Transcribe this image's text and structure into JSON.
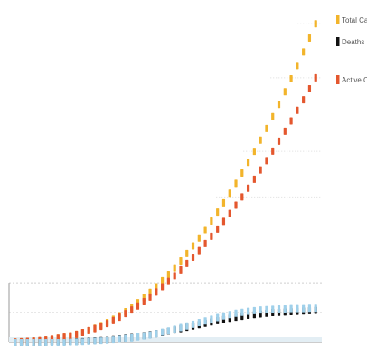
{
  "chart_data": {
    "type": "line",
    "title": "",
    "xlabel": "",
    "ylabel": "",
    "legend_position": "top-right",
    "grid": true,
    "x": [
      1,
      2,
      3,
      4,
      5,
      6,
      7,
      8,
      9,
      10,
      11,
      12,
      13,
      14,
      15,
      16,
      17,
      18,
      19,
      20,
      21,
      22,
      23,
      24,
      25,
      26,
      27,
      28,
      29,
      30,
      31,
      32,
      33,
      34,
      35,
      36,
      37,
      38,
      39,
      40,
      41,
      42,
      43,
      44,
      45,
      46,
      47,
      48,
      49,
      50
    ],
    "xlim": [
      0,
      51
    ],
    "ylim": [
      0,
      100
    ],
    "series": [
      {
        "name": "Total Cases",
        "color": "#f2b42b",
        "values": [
          0.2,
          0.3,
          0.4,
          0.5,
          0.6,
          0.8,
          1.0,
          1.3,
          1.6,
          2.0,
          2.5,
          3.0,
          3.6,
          4.3,
          5.1,
          6.0,
          7.0,
          8.1,
          9.3,
          10.6,
          12.0,
          13.5,
          15.1,
          16.8,
          18.6,
          20.5,
          22.5,
          24.6,
          26.8,
          29.1,
          31.5,
          34.0,
          36.6,
          39.3,
          42.1,
          45.0,
          48.0,
          51.1,
          54.3,
          57.6,
          61.0,
          64.5,
          68.1,
          71.8,
          75.6,
          79.5,
          83.5,
          87.6,
          91.8,
          96.1
        ]
      },
      {
        "name": "Deaths",
        "color": "#111111",
        "values": [
          0,
          0,
          0,
          0,
          0,
          0,
          0.1,
          0.1,
          0.1,
          0.2,
          0.2,
          0.3,
          0.4,
          0.5,
          0.6,
          0.7,
          0.9,
          1.1,
          1.3,
          1.5,
          1.8,
          2.1,
          2.4,
          2.7,
          3.0,
          3.4,
          3.8,
          4.2,
          4.6,
          5.0,
          5.4,
          5.8,
          6.2,
          6.6,
          7.0,
          7.3,
          7.6,
          7.9,
          8.2,
          8.4,
          8.6,
          8.8,
          9.0,
          9.1,
          9.2,
          9.3,
          9.4,
          9.5,
          9.6,
          9.7
        ]
      },
      {
        "name": "Active Cases",
        "color": "#e4572e",
        "values": [
          0.2,
          0.3,
          0.4,
          0.5,
          0.6,
          0.8,
          1.0,
          1.3,
          1.6,
          2.0,
          2.5,
          3.0,
          3.6,
          4.2,
          4.9,
          5.7,
          6.6,
          7.6,
          8.7,
          9.8,
          11.0,
          12.3,
          13.7,
          15.2,
          16.8,
          18.4,
          20.1,
          21.9,
          23.8,
          25.7,
          27.7,
          29.8,
          32.0,
          34.2,
          36.5,
          38.9,
          41.4,
          43.9,
          46.5,
          49.2,
          52.0,
          54.8,
          57.7,
          60.7,
          63.7,
          66.8,
          70.0,
          73.2,
          76.5,
          79.8
        ]
      },
      {
        "name": "",
        "color": "#9fd0ea",
        "values": [
          0,
          0,
          0,
          0,
          0,
          0,
          0,
          0,
          0,
          0.1,
          0.1,
          0.2,
          0.3,
          0.4,
          0.5,
          0.6,
          0.8,
          1.0,
          1.2,
          1.4,
          1.7,
          2.0,
          2.3,
          2.7,
          3.1,
          3.5,
          4.0,
          4.5,
          5.0,
          5.5,
          6.0,
          6.5,
          7.0,
          7.5,
          8.0,
          8.4,
          8.8,
          9.1,
          9.4,
          9.6,
          9.8,
          9.9,
          10.0,
          10.1,
          10.1,
          10.2,
          10.2,
          10.2,
          10.3,
          10.3
        ]
      }
    ]
  }
}
